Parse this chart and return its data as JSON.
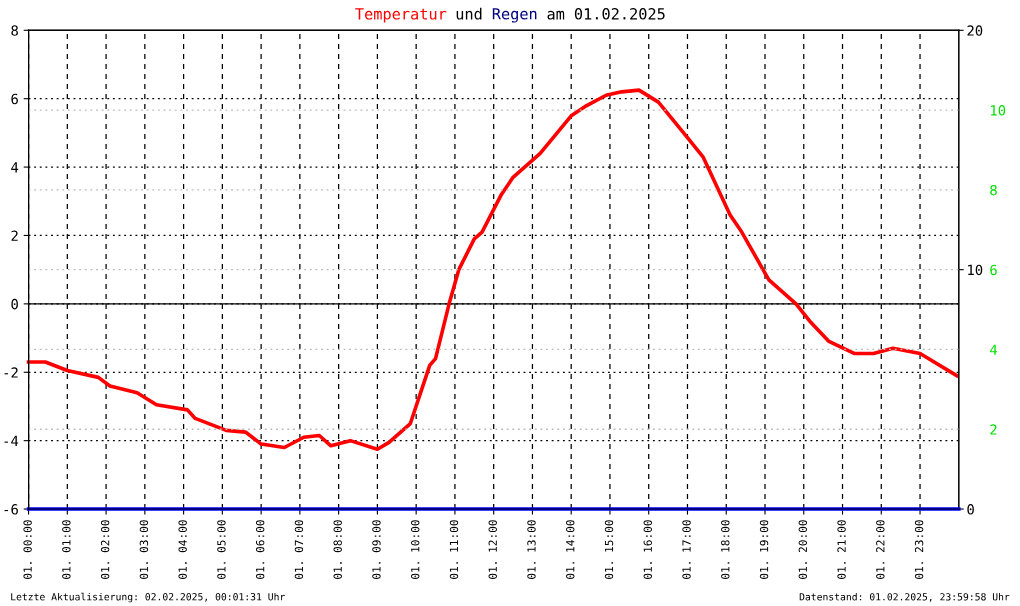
{
  "chart_data": {
    "type": "line",
    "title": "Temperatur und Regen am 01.02.2025",
    "annotations": [
      "Letzte Aktualisierung: 02.02.2025, 00:01:31 Uhr",
      "Datenstand: 01.02.2025, 23:59:58 Uhr"
    ],
    "xlim": [
      "2025-02-01T00:00",
      "2025-02-02T00:00"
    ],
    "xticks": [
      {
        "value": "2025-02-01T00:00",
        "label": "01. 00:00"
      },
      {
        "value": "2025-02-01T01:00",
        "label": "01. 01:00"
      },
      {
        "value": "2025-02-01T02:00",
        "label": "01. 02:00"
      },
      {
        "value": "2025-02-01T03:00",
        "label": "01. 03:00"
      },
      {
        "value": "2025-02-01T04:00",
        "label": "01. 04:00"
      },
      {
        "value": "2025-02-01T05:00",
        "label": "01. 05:00"
      },
      {
        "value": "2025-02-01T06:00",
        "label": "01. 06:00"
      },
      {
        "value": "2025-02-01T07:00",
        "label": "01. 07:00"
      },
      {
        "value": "2025-02-01T08:00",
        "label": "01. 08:00"
      },
      {
        "value": "2025-02-01T09:00",
        "label": "01. 09:00"
      },
      {
        "value": "2025-02-01T10:00",
        "label": "01. 10:00"
      },
      {
        "value": "2025-02-01T11:00",
        "label": "01. 11:00"
      },
      {
        "value": "2025-02-01T12:00",
        "label": "01. 12:00"
      },
      {
        "value": "2025-02-01T13:00",
        "label": "01. 13:00"
      },
      {
        "value": "2025-02-01T14:00",
        "label": "01. 14:00"
      },
      {
        "value": "2025-02-01T15:00",
        "label": "01. 15:00"
      },
      {
        "value": "2025-02-01T16:00",
        "label": "01. 16:00"
      },
      {
        "value": "2025-02-01T17:00",
        "label": "01. 17:00"
      },
      {
        "value": "2025-02-01T18:00",
        "label": "01. 18:00"
      },
      {
        "value": "2025-02-01T19:00",
        "label": "01. 19:00"
      },
      {
        "value": "2025-02-01T20:00",
        "label": "01. 20:00"
      },
      {
        "value": "2025-02-01T21:00",
        "label": "01. 21:00"
      },
      {
        "value": "2025-02-01T22:00",
        "label": "01. 22:00"
      },
      {
        "value": "2025-02-01T23:00",
        "label": "01. 23:00"
      }
    ],
    "ylim": [
      -6,
      8
    ],
    "yticks": [
      -6,
      -4,
      -2,
      0,
      2,
      4,
      6,
      8
    ],
    "y2lim": [
      0,
      20
    ],
    "y2ticks": [
      0,
      10,
      20
    ],
    "y3lim": [
      0,
      12
    ],
    "y3ticks": [
      2,
      4,
      6,
      8,
      10
    ],
    "grid": true,
    "legend": false,
    "marker": "none",
    "line_style": "solid",
    "ref_lines": [
      {
        "axis": "y",
        "value": 0,
        "color": "#000000",
        "line_style": "solid"
      }
    ],
    "series": [
      {
        "color": "#ff0000",
        "x": [
          "2025-02-01T00:00",
          "2025-02-01T00:26",
          "2025-02-01T01:00",
          "2025-02-01T01:48",
          "2025-02-01T02:06",
          "2025-02-01T02:48",
          "2025-02-01T03:18",
          "2025-02-01T04:06",
          "2025-02-01T04:18",
          "2025-02-01T05:06",
          "2025-02-01T05:36",
          "2025-02-01T06:00",
          "2025-02-01T06:36",
          "2025-02-01T07:06",
          "2025-02-01T07:30",
          "2025-02-01T07:48",
          "2025-02-01T08:18",
          "2025-02-01T09:00",
          "2025-02-01T09:18",
          "2025-02-01T09:51",
          "2025-02-01T10:21",
          "2025-02-01T10:30",
          "2025-02-01T10:51",
          "2025-02-01T11:06",
          "2025-02-01T11:30",
          "2025-02-01T11:42",
          "2025-02-01T12:12",
          "2025-02-01T12:30",
          "2025-02-01T13:12",
          "2025-02-01T14:00",
          "2025-02-01T14:24",
          "2025-02-01T14:54",
          "2025-02-01T15:18",
          "2025-02-01T15:45",
          "2025-02-01T16:15",
          "2025-02-01T16:54",
          "2025-02-01T17:24",
          "2025-02-01T18:06",
          "2025-02-01T18:24",
          "2025-02-01T19:06",
          "2025-02-01T19:48",
          "2025-02-01T20:09",
          "2025-02-01T20:39",
          "2025-02-01T21:18",
          "2025-02-01T21:48",
          "2025-02-01T22:18",
          "2025-02-01T23:00",
          "2025-02-01T23:57"
        ],
        "values": [
          -1.7,
          -1.7,
          -1.95,
          -2.15,
          -2.4,
          -2.6,
          -2.95,
          -3.1,
          -3.35,
          -3.7,
          -3.75,
          -4.1,
          -4.2,
          -3.9,
          -3.85,
          -4.15,
          -4.0,
          -4.25,
          -4.05,
          -3.5,
          -1.8,
          -1.6,
          0,
          1.0,
          1.9,
          2.1,
          3.2,
          3.7,
          4.4,
          5.5,
          5.8,
          6.1,
          6.2,
          6.25,
          5.9,
          5.0,
          4.3,
          2.6,
          2.1,
          0.7,
          0,
          -0.5,
          -1.1,
          -1.45,
          -1.45,
          -1.3,
          -1.45,
          -2.1
        ]
      },
      {
        "color": "#0000ff",
        "axis": "y2",
        "x": [
          "2025-02-01T00:00",
          "2025-02-02T00:00"
        ],
        "values": [
          0,
          0
        ]
      }
    ]
  }
}
